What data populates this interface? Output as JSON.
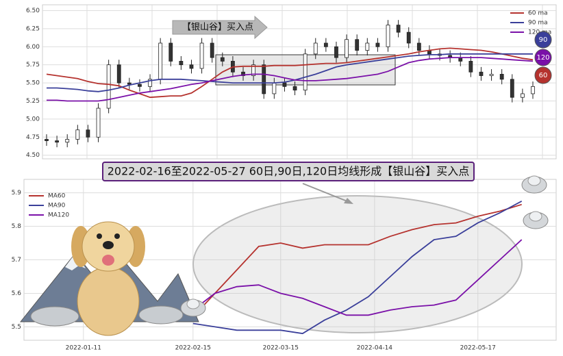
{
  "chart_data": [
    {
      "type": "candlestick",
      "open": [
        4.72,
        4.7,
        4.68,
        4.72,
        4.85,
        4.75,
        5.15,
        5.75,
        5.5,
        5.48,
        5.45,
        5.55,
        6.05,
        5.8,
        5.75,
        5.7,
        6.05,
        5.85,
        5.8,
        5.65,
        5.6,
        5.75,
        5.35,
        5.5,
        5.45,
        5.4,
        5.9,
        6.05,
        6.0,
        5.85,
        6.1,
        5.95,
        6.05,
        6.0,
        6.3,
        6.2,
        6.05,
        5.95,
        5.9,
        5.88,
        5.85,
        5.8,
        5.65,
        5.6,
        5.62,
        5.55,
        5.3,
        5.35
      ],
      "high": [
        4.79,
        4.77,
        4.79,
        4.92,
        4.92,
        5.22,
        5.82,
        5.82,
        5.57,
        5.55,
        5.62,
        6.12,
        6.12,
        5.87,
        5.82,
        6.12,
        6.12,
        5.92,
        5.87,
        5.72,
        5.82,
        5.82,
        5.57,
        5.57,
        5.52,
        5.97,
        6.12,
        6.12,
        6.07,
        6.17,
        6.17,
        6.12,
        6.12,
        6.37,
        6.37,
        6.27,
        6.12,
        6.02,
        5.97,
        5.95,
        5.92,
        5.87,
        5.72,
        5.69,
        5.69,
        5.62,
        5.42,
        5.52
      ],
      "low": [
        4.63,
        4.61,
        4.61,
        4.65,
        4.68,
        4.68,
        5.08,
        5.43,
        5.41,
        5.38,
        5.38,
        5.48,
        5.73,
        5.68,
        5.63,
        5.63,
        5.78,
        5.73,
        5.58,
        5.53,
        5.53,
        5.28,
        5.28,
        5.38,
        5.33,
        5.33,
        5.83,
        5.93,
        5.78,
        5.78,
        5.88,
        5.88,
        5.93,
        5.93,
        6.13,
        5.98,
        5.88,
        5.83,
        5.81,
        5.78,
        5.73,
        5.58,
        5.53,
        5.53,
        5.48,
        5.23,
        5.23,
        5.28
      ],
      "close": [
        4.7,
        4.68,
        4.72,
        4.85,
        4.75,
        5.15,
        5.75,
        5.5,
        5.48,
        5.45,
        5.55,
        6.05,
        5.8,
        5.75,
        5.7,
        6.05,
        5.85,
        5.8,
        5.65,
        5.6,
        5.75,
        5.35,
        5.5,
        5.45,
        5.4,
        5.9,
        6.05,
        6.0,
        5.85,
        6.1,
        5.95,
        6.05,
        6.0,
        6.3,
        6.2,
        6.05,
        5.95,
        5.9,
        5.88,
        5.85,
        5.8,
        5.65,
        5.6,
        5.62,
        5.55,
        5.3,
        5.35,
        5.45
      ],
      "series": [
        {
          "name": "60 ma",
          "color": "#b5322e",
          "values": [
            5.62,
            5.6,
            5.58,
            5.56,
            5.52,
            5.49,
            5.48,
            5.46,
            5.4,
            5.35,
            5.3,
            5.31,
            5.32,
            5.32,
            5.36,
            5.45,
            5.55,
            5.65,
            5.72,
            5.73,
            5.73,
            5.73,
            5.74,
            5.74,
            5.74,
            5.75,
            5.76,
            5.77,
            5.77,
            5.78,
            5.8,
            5.82,
            5.84,
            5.86,
            5.88,
            5.9,
            5.93,
            5.95,
            5.97,
            5.98,
            5.97,
            5.96,
            5.95,
            5.93,
            5.9,
            5.87,
            5.84,
            5.82
          ]
        },
        {
          "name": "90 ma",
          "color": "#3a3f9a",
          "values": [
            5.43,
            5.43,
            5.42,
            5.41,
            5.39,
            5.38,
            5.4,
            5.43,
            5.47,
            5.5,
            5.53,
            5.55,
            5.55,
            5.55,
            5.54,
            5.53,
            5.52,
            5.51,
            5.5,
            5.5,
            5.5,
            5.5,
            5.5,
            5.51,
            5.54,
            5.58,
            5.62,
            5.67,
            5.72,
            5.75,
            5.77,
            5.79,
            5.81,
            5.83,
            5.85,
            5.87,
            5.88,
            5.89,
            5.89,
            5.9,
            5.9,
            5.9,
            5.9,
            5.9,
            5.9,
            5.9,
            5.9,
            5.9
          ]
        },
        {
          "name": "120 ma",
          "color": "#7a10a8",
          "values": [
            5.26,
            5.26,
            5.25,
            5.25,
            5.25,
            5.25,
            5.27,
            5.3,
            5.33,
            5.36,
            5.38,
            5.4,
            5.42,
            5.45,
            5.48,
            5.5,
            5.53,
            5.56,
            5.59,
            5.61,
            5.62,
            5.62,
            5.6,
            5.57,
            5.54,
            5.53,
            5.53,
            5.54,
            5.55,
            5.56,
            5.58,
            5.6,
            5.62,
            5.66,
            5.72,
            5.78,
            5.81,
            5.83,
            5.84,
            5.85,
            5.85,
            5.85,
            5.85,
            5.84,
            5.83,
            5.82,
            5.81,
            5.8
          ]
        }
      ],
      "ylim": [
        4.45,
        6.58
      ],
      "yticks": [
        {
          "value": 4.5,
          "label": "4.50"
        },
        {
          "value": 4.75,
          "label": "4.75"
        },
        {
          "value": 5.0,
          "label": "5.00"
        },
        {
          "value": 5.25,
          "label": "5.25"
        },
        {
          "value": 5.5,
          "label": "5.50"
        },
        {
          "value": 5.75,
          "label": "5.75"
        },
        {
          "value": 6.0,
          "label": "6.00"
        },
        {
          "value": 6.25,
          "label": "6.25"
        },
        {
          "value": 6.5,
          "label": "6.50"
        }
      ],
      "grid": true,
      "legend": "upper right",
      "annotation": "【银山谷】买入点",
      "badges": [
        {
          "text": "90",
          "color": "#3a3f9a"
        },
        {
          "text": "120",
          "color": "#7a10a8"
        },
        {
          "text": "60",
          "color": "#b5322e"
        }
      ]
    },
    {
      "type": "line",
      "title": "2022-02-16至2022-05-27 60日,90日,120日均线形成【银山谷】买入点",
      "x": [
        "2022-02-15",
        "2022-02-22",
        "2022-03-01",
        "2022-03-08",
        "2022-03-15",
        "2022-03-22",
        "2022-03-29",
        "2022-04-05",
        "2022-04-12",
        "2022-04-19",
        "2022-04-26",
        "2022-05-03",
        "2022-05-10",
        "2022-05-17",
        "2022-05-24",
        "2022-05-31"
      ],
      "series": [
        {
          "name": "MA60",
          "color": "#b5322e",
          "values": [
            5.53,
            5.6,
            5.67,
            5.74,
            5.75,
            5.735,
            5.745,
            5.745,
            5.745,
            5.77,
            5.79,
            5.805,
            5.81,
            5.83,
            5.845,
            5.865
          ]
        },
        {
          "name": "MA90",
          "color": "#3a3f9a",
          "values": [
            5.51,
            5.5,
            5.49,
            5.49,
            5.49,
            5.48,
            5.52,
            5.55,
            5.59,
            5.65,
            5.71,
            5.76,
            5.77,
            5.81,
            5.84,
            5.875
          ]
        },
        {
          "name": "MA120",
          "color": "#7a10a8",
          "values": [
            5.55,
            5.6,
            5.62,
            5.625,
            5.6,
            5.585,
            5.56,
            5.535,
            5.535,
            5.55,
            5.56,
            5.565,
            5.58,
            5.64,
            5.7,
            5.76
          ]
        }
      ],
      "xlim": [
        "2021-12-23",
        "2022-06-11"
      ],
      "xticks": [
        "2022-01-11",
        "2022-02-15",
        "2022-03-15",
        "2022-04-14",
        "2022-05-17"
      ],
      "ylim": [
        5.46,
        5.94
      ],
      "yticks": [
        5.5,
        5.6,
        5.7,
        5.8,
        5.9
      ],
      "grid": true,
      "legend": "upper left"
    }
  ]
}
